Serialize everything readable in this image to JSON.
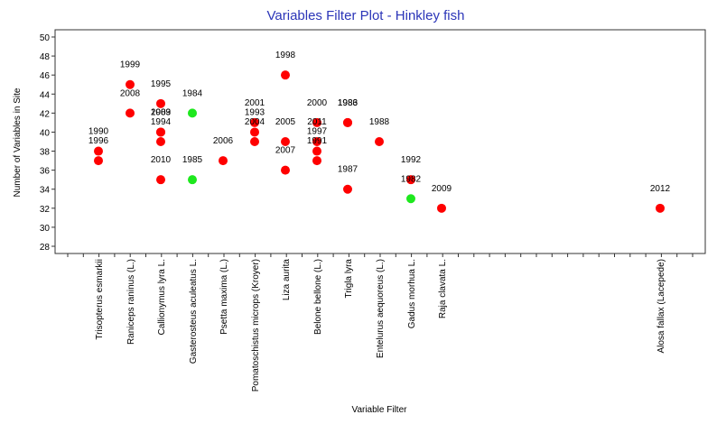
{
  "chart_data": {
    "type": "scatter",
    "title": "Variables Filter Plot - Hinkley fish",
    "xlabel": "Variable Filter",
    "ylabel": "Number of Variables in Site",
    "ylim": [
      28,
      50
    ],
    "yticks": [
      28,
      30,
      32,
      34,
      36,
      38,
      40,
      42,
      44,
      46,
      48,
      50
    ],
    "grid": false,
    "legend": "none",
    "colors": {
      "red": "#ff0000",
      "green": "#1ee81e",
      "title": "#2b35b8",
      "axis": "#333333"
    },
    "categories": [
      "Trisopterus esmarkii",
      "Raniceps raninus (L.)",
      "Callionymus lyra L.",
      "Gasterosteus aculeatus L.",
      "Psetta maxima (L.)",
      "Pomatoschistus microps (Kroyer)",
      "Liza aurita",
      "Belone bellone (L.)",
      "Trigla lyra",
      "Entelurus aequoreus (L.)",
      "Gadus morhua L.",
      "Raja clavata L.",
      "Alosa fallax (Lacepede)"
    ],
    "points": [
      {
        "category": "Trisopterus esmarkii",
        "y": 38,
        "label": "1990",
        "color": "red"
      },
      {
        "category": "Trisopterus esmarkii",
        "y": 37,
        "label": "1996",
        "color": "red"
      },
      {
        "category": "Raniceps raninus (L.)",
        "y": 45,
        "label": "1999",
        "color": "red"
      },
      {
        "category": "Raniceps raninus (L.)",
        "y": 42,
        "label": "2008",
        "color": "red"
      },
      {
        "category": "Callionymus lyra L.",
        "y": 43,
        "label": "1995",
        "color": "red"
      },
      {
        "category": "Callionymus lyra L.",
        "y": 40,
        "label": "1989",
        "color": "red"
      },
      {
        "category": "Callionymus lyra L.",
        "y": 40,
        "label": "2003",
        "color": "red"
      },
      {
        "category": "Callionymus lyra L.",
        "y": 39,
        "label": "1994",
        "color": "red"
      },
      {
        "category": "Callionymus lyra L.",
        "y": 35,
        "label": "2010",
        "color": "red"
      },
      {
        "category": "Gasterosteus aculeatus L.",
        "y": 42,
        "label": "1984",
        "color": "green"
      },
      {
        "category": "Gasterosteus aculeatus L.",
        "y": 35,
        "label": "1985",
        "color": "green"
      },
      {
        "category": "Psetta maxima (L.)",
        "y": 37,
        "label": "2006",
        "color": "red"
      },
      {
        "category": "Pomatoschistus microps (Kroyer)",
        "y": 41,
        "label": "2001",
        "color": "red"
      },
      {
        "category": "Pomatoschistus microps (Kroyer)",
        "y": 40,
        "label": "1993",
        "color": "red"
      },
      {
        "category": "Pomatoschistus microps (Kroyer)",
        "y": 39,
        "label": "2004",
        "color": "red"
      },
      {
        "category": "Liza aurita",
        "y": 46,
        "label": "1998",
        "color": "red"
      },
      {
        "category": "Liza aurita",
        "y": 39,
        "label": "2005",
        "color": "red"
      },
      {
        "category": "Liza aurita",
        "y": 36,
        "label": "2007",
        "color": "red"
      },
      {
        "category": "Belone bellone (L.)",
        "y": 41,
        "label": "2000",
        "color": "red"
      },
      {
        "category": "Belone bellone (L.)",
        "y": 39,
        "label": "2011",
        "color": "red"
      },
      {
        "category": "Belone bellone (L.)",
        "y": 38,
        "label": "1997",
        "color": "red"
      },
      {
        "category": "Belone bellone (L.)",
        "y": 37,
        "label": "1991",
        "color": "red"
      },
      {
        "category": "Trigla lyra",
        "y": 41,
        "label": "1983",
        "color": "red"
      },
      {
        "category": "Trigla lyra",
        "y": 41,
        "label": "1986",
        "color": "red"
      },
      {
        "category": "Trigla lyra",
        "y": 34,
        "label": "1987",
        "color": "red"
      },
      {
        "category": "Entelurus aequoreus (L.)",
        "y": 39,
        "label": "1988",
        "color": "red"
      },
      {
        "category": "Gadus morhua L.",
        "y": 35,
        "label": "1992",
        "color": "red"
      },
      {
        "category": "Gadus morhua L.",
        "y": 33,
        "label": "1982",
        "color": "green"
      },
      {
        "category": "Raja clavata L.",
        "y": 32,
        "label": "2009",
        "color": "red"
      },
      {
        "category": "Alosa fallax (Lacepede)",
        "y": 32,
        "label": "2012",
        "color": "red"
      }
    ]
  }
}
